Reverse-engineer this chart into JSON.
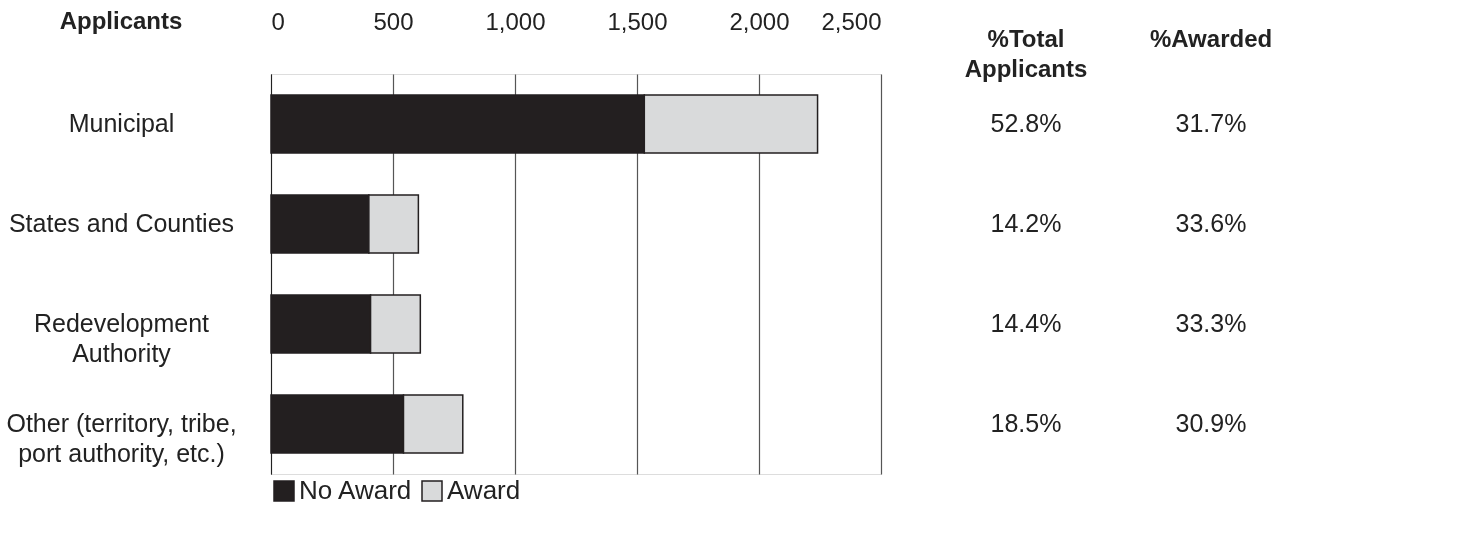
{
  "chart_data": {
    "type": "bar",
    "orientation": "horizontal",
    "stacked": true,
    "ylabel": "Applicants",
    "categories": [
      "Municipal",
      "States and Counties",
      "Redevelopment\nAuthority",
      "Other (territory, tribe,\nport authority, etc.)"
    ],
    "series": [
      {
        "name": "No Award",
        "color": "#231f20",
        "values": [
          1530,
          401,
          408,
          543
        ]
      },
      {
        "name": "Award",
        "color": "#d9dadb",
        "values": [
          710,
          203,
          204,
          243
        ]
      }
    ],
    "xlim": [
      0,
      2500
    ],
    "xticks": [
      0,
      {
        "value": 500,
        "label": "500"
      },
      {
        "value": 1000,
        "label": "1,000"
      },
      {
        "value": 1500,
        "label": "1,500"
      },
      {
        "value": 2000,
        "label": "2,000"
      },
      {
        "value": 2500,
        "label": "2,500"
      }
    ],
    "grid": "x",
    "legend": "bottom",
    "annotations": [
      "%Total\nApplicants",
      "%Awarded",
      "52.8%",
      "31.7%",
      "14.2%",
      "33.6%",
      "14.4%",
      "33.3%",
      "18.5%",
      "30.9%"
    ]
  }
}
